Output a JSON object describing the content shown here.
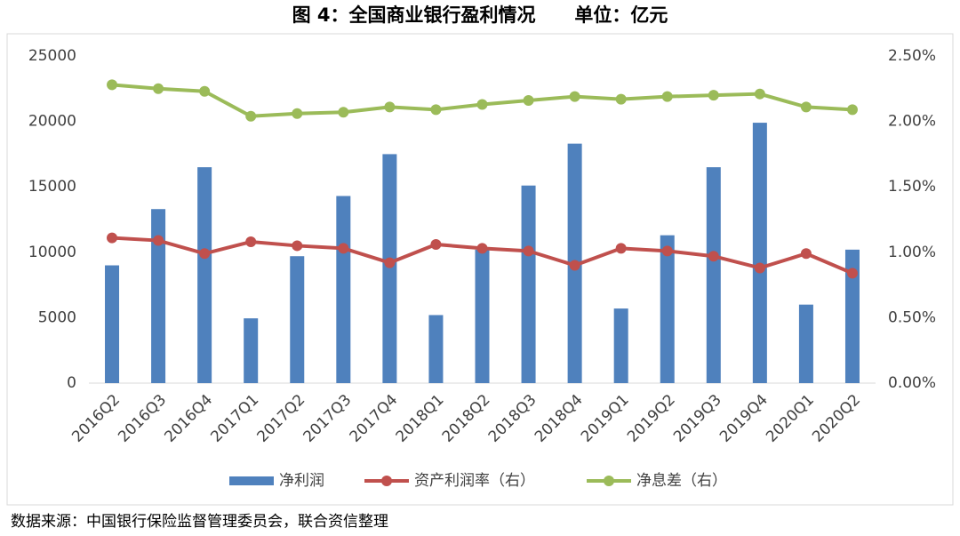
{
  "chart_data": {
    "type": "bar",
    "title": "图 4：全国商业银行盈利情况      单位：亿元",
    "note": "数据来源：中国银行保险监督管理委员会，联合资信整理",
    "categories": [
      "2016Q2",
      "2016Q3",
      "2016Q4",
      "2017Q1",
      "2017Q2",
      "2017Q3",
      "2017Q4",
      "2018Q1",
      "2018Q2",
      "2018Q3",
      "2018Q4",
      "2019Q1",
      "2019Q2",
      "2019Q3",
      "2019Q4",
      "2020Q1",
      "2020Q2"
    ],
    "series": [
      {
        "name": "净利润",
        "type": "bar",
        "color": "#4f81bd",
        "values": [
          9000,
          13300,
          16500,
          4950,
          9700,
          14300,
          17500,
          5200,
          10200,
          15100,
          18300,
          5700,
          11300,
          16500,
          19900,
          6000,
          10200
        ]
      },
      {
        "name": "资产利润率（右）",
        "type": "line",
        "axis": "y2",
        "color": "#c0504d",
        "values": [
          1.11,
          1.09,
          0.99,
          1.08,
          1.05,
          1.03,
          0.92,
          1.06,
          1.03,
          1.01,
          0.9,
          1.03,
          1.01,
          0.97,
          0.88,
          0.99,
          0.84
        ]
      },
      {
        "name": "净息差（右）",
        "type": "line",
        "axis": "y2",
        "color": "#9bbb59",
        "values": [
          2.28,
          2.25,
          2.23,
          2.04,
          2.06,
          2.07,
          2.11,
          2.09,
          2.13,
          2.16,
          2.19,
          2.17,
          2.19,
          2.2,
          2.21,
          2.11,
          2.09
        ]
      }
    ],
    "ylim": [
      0,
      25000
    ],
    "yticks": [
      0,
      5000,
      10000,
      15000,
      20000,
      25000
    ],
    "y2lim": [
      0,
      2.5
    ],
    "y2ticks": [
      {
        "value": 0,
        "label": "0.00%"
      },
      {
        "value": 0.5,
        "label": "0.50%"
      },
      {
        "value": 1,
        "label": "1.00%"
      },
      {
        "value": 1.5,
        "label": "1.50%"
      },
      {
        "value": 2,
        "label": "2.00%"
      },
      {
        "value": 2.5,
        "label": "2.50%"
      }
    ],
    "legend": "bottom"
  }
}
